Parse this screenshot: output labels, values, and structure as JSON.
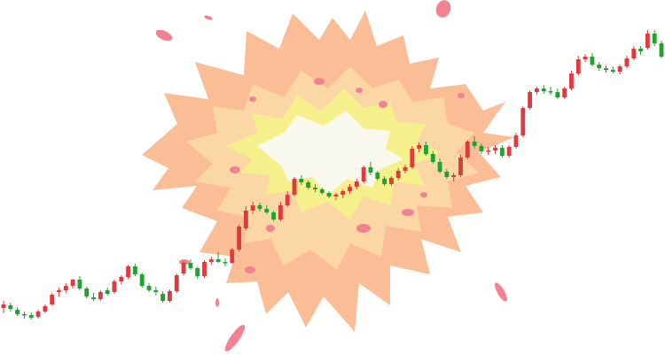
{
  "colors": {
    "up": "#e03a3e",
    "down": "#1fa32f",
    "explosion_outer": "#fbbd96",
    "explosion_mid": "#fbd7a6",
    "explosion_inner": "#f6f08c",
    "explosion_core": "#f8f9ec",
    "debris": "#f2828f"
  },
  "chart_data": {
    "type": "candlestick",
    "title": "",
    "xlabel": "",
    "ylabel": "",
    "ylim": [
      0,
      400
    ],
    "grid": false,
    "legend": "none",
    "candles": [
      {
        "o": 52,
        "h": 60,
        "l": 46,
        "c": 56
      },
      {
        "o": 55,
        "h": 58,
        "l": 48,
        "c": 51
      },
      {
        "o": 50,
        "h": 53,
        "l": 43,
        "c": 45
      },
      {
        "o": 45,
        "h": 48,
        "l": 40,
        "c": 44
      },
      {
        "o": 44,
        "h": 47,
        "l": 39,
        "c": 41
      },
      {
        "o": 42,
        "h": 50,
        "l": 40,
        "c": 48
      },
      {
        "o": 48,
        "h": 56,
        "l": 46,
        "c": 54
      },
      {
        "o": 56,
        "h": 69,
        "l": 55,
        "c": 67
      },
      {
        "o": 70,
        "h": 75,
        "l": 65,
        "c": 72
      },
      {
        "o": 72,
        "h": 80,
        "l": 69,
        "c": 77
      },
      {
        "o": 77,
        "h": 85,
        "l": 74,
        "c": 84
      },
      {
        "o": 84,
        "h": 88,
        "l": 72,
        "c": 74
      },
      {
        "o": 74,
        "h": 76,
        "l": 63,
        "c": 65
      },
      {
        "o": 64,
        "h": 69,
        "l": 60,
        "c": 62
      },
      {
        "o": 62,
        "h": 72,
        "l": 60,
        "c": 70
      },
      {
        "o": 72,
        "h": 75,
        "l": 66,
        "c": 68
      },
      {
        "o": 70,
        "h": 84,
        "l": 68,
        "c": 82
      },
      {
        "o": 82,
        "h": 89,
        "l": 79,
        "c": 87
      },
      {
        "o": 87,
        "h": 101,
        "l": 85,
        "c": 99
      },
      {
        "o": 99,
        "h": 102,
        "l": 88,
        "c": 90
      },
      {
        "o": 90,
        "h": 92,
        "l": 75,
        "c": 77
      },
      {
        "o": 77,
        "h": 80,
        "l": 70,
        "c": 72
      },
      {
        "o": 72,
        "h": 76,
        "l": 66,
        "c": 70
      },
      {
        "o": 68,
        "h": 71,
        "l": 58,
        "c": 60
      },
      {
        "o": 60,
        "h": 73,
        "l": 58,
        "c": 71
      },
      {
        "o": 71,
        "h": 91,
        "l": 69,
        "c": 89
      },
      {
        "o": 91,
        "h": 105,
        "l": 89,
        "c": 103
      },
      {
        "o": 103,
        "h": 107,
        "l": 95,
        "c": 97
      },
      {
        "o": 97,
        "h": 99,
        "l": 85,
        "c": 88
      },
      {
        "o": 88,
        "h": 106,
        "l": 86,
        "c": 104
      },
      {
        "o": 104,
        "h": 110,
        "l": 101,
        "c": 107
      },
      {
        "o": 107,
        "h": 115,
        "l": 103,
        "c": 104
      },
      {
        "o": 104,
        "h": 108,
        "l": 99,
        "c": 103
      },
      {
        "o": 103,
        "h": 120,
        "l": 102,
        "c": 118
      },
      {
        "o": 118,
        "h": 146,
        "l": 116,
        "c": 144
      },
      {
        "o": 142,
        "h": 167,
        "l": 140,
        "c": 162
      },
      {
        "o": 162,
        "h": 172,
        "l": 158,
        "c": 168
      },
      {
        "o": 168,
        "h": 171,
        "l": 161,
        "c": 164
      },
      {
        "o": 164,
        "h": 168,
        "l": 158,
        "c": 160
      },
      {
        "o": 160,
        "h": 162,
        "l": 150,
        "c": 152
      },
      {
        "o": 152,
        "h": 172,
        "l": 150,
        "c": 168
      },
      {
        "o": 168,
        "h": 184,
        "l": 166,
        "c": 180
      },
      {
        "o": 180,
        "h": 200,
        "l": 178,
        "c": 198
      },
      {
        "o": 198,
        "h": 202,
        "l": 191,
        "c": 194
      },
      {
        "o": 194,
        "h": 196,
        "l": 186,
        "c": 188
      },
      {
        "o": 188,
        "h": 192,
        "l": 183,
        "c": 186
      },
      {
        "o": 186,
        "h": 188,
        "l": 180,
        "c": 182
      },
      {
        "o": 182,
        "h": 184,
        "l": 176,
        "c": 178
      },
      {
        "o": 178,
        "h": 182,
        "l": 174,
        "c": 180
      },
      {
        "o": 180,
        "h": 186,
        "l": 176,
        "c": 184
      },
      {
        "o": 184,
        "h": 192,
        "l": 181,
        "c": 189
      },
      {
        "o": 189,
        "h": 198,
        "l": 186,
        "c": 195
      },
      {
        "o": 195,
        "h": 213,
        "l": 193,
        "c": 211
      },
      {
        "o": 211,
        "h": 217,
        "l": 202,
        "c": 205
      },
      {
        "o": 205,
        "h": 207,
        "l": 196,
        "c": 198
      },
      {
        "o": 198,
        "h": 201,
        "l": 190,
        "c": 192
      },
      {
        "o": 192,
        "h": 201,
        "l": 190,
        "c": 199
      },
      {
        "o": 199,
        "h": 210,
        "l": 196,
        "c": 207
      },
      {
        "o": 207,
        "h": 214,
        "l": 204,
        "c": 211
      },
      {
        "o": 211,
        "h": 235,
        "l": 209,
        "c": 232
      },
      {
        "o": 232,
        "h": 239,
        "l": 228,
        "c": 236
      },
      {
        "o": 236,
        "h": 240,
        "l": 224,
        "c": 226
      },
      {
        "o": 226,
        "h": 229,
        "l": 215,
        "c": 217
      },
      {
        "o": 217,
        "h": 221,
        "l": 204,
        "c": 206
      },
      {
        "o": 206,
        "h": 209,
        "l": 198,
        "c": 200
      },
      {
        "o": 200,
        "h": 205,
        "l": 195,
        "c": 202
      },
      {
        "o": 202,
        "h": 225,
        "l": 200,
        "c": 222
      },
      {
        "o": 222,
        "h": 242,
        "l": 220,
        "c": 240
      },
      {
        "o": 240,
        "h": 246,
        "l": 232,
        "c": 235
      },
      {
        "o": 235,
        "h": 238,
        "l": 226,
        "c": 229
      },
      {
        "o": 229,
        "h": 234,
        "l": 225,
        "c": 230
      },
      {
        "o": 230,
        "h": 236,
        "l": 226,
        "c": 233
      },
      {
        "o": 233,
        "h": 236,
        "l": 222,
        "c": 224
      },
      {
        "o": 224,
        "h": 236,
        "l": 222,
        "c": 234
      },
      {
        "o": 234,
        "h": 250,
        "l": 232,
        "c": 247
      },
      {
        "o": 247,
        "h": 280,
        "l": 245,
        "c": 278
      },
      {
        "o": 278,
        "h": 298,
        "l": 276,
        "c": 296
      },
      {
        "o": 296,
        "h": 302,
        "l": 293,
        "c": 300
      },
      {
        "o": 300,
        "h": 304,
        "l": 294,
        "c": 297
      },
      {
        "o": 297,
        "h": 302,
        "l": 293,
        "c": 296
      },
      {
        "o": 296,
        "h": 300,
        "l": 288,
        "c": 290
      },
      {
        "o": 290,
        "h": 302,
        "l": 288,
        "c": 300
      },
      {
        "o": 300,
        "h": 320,
        "l": 298,
        "c": 317
      },
      {
        "o": 317,
        "h": 337,
        "l": 315,
        "c": 333
      },
      {
        "o": 333,
        "h": 339,
        "l": 330,
        "c": 336
      },
      {
        "o": 336,
        "h": 340,
        "l": 325,
        "c": 327
      },
      {
        "o": 327,
        "h": 330,
        "l": 320,
        "c": 323
      },
      {
        "o": 323,
        "h": 326,
        "l": 318,
        "c": 321
      },
      {
        "o": 321,
        "h": 325,
        "l": 317,
        "c": 319
      },
      {
        "o": 319,
        "h": 327,
        "l": 316,
        "c": 325
      },
      {
        "o": 325,
        "h": 337,
        "l": 323,
        "c": 334
      },
      {
        "o": 334,
        "h": 348,
        "l": 332,
        "c": 345
      },
      {
        "o": 345,
        "h": 348,
        "l": 338,
        "c": 342
      },
      {
        "o": 346,
        "h": 366,
        "l": 344,
        "c": 362
      },
      {
        "o": 362,
        "h": 366,
        "l": 348,
        "c": 351
      },
      {
        "o": 351,
        "h": 354,
        "l": 334,
        "c": 336
      }
    ]
  }
}
